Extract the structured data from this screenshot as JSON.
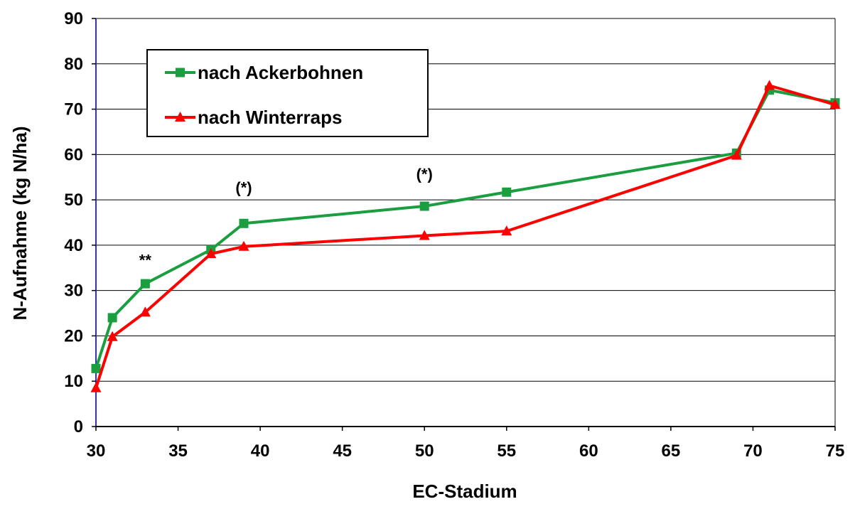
{
  "chart_data": {
    "type": "line",
    "xlabel": "EC-Stadium",
    "ylabel": "N-Aufnahme (kg N/ha)",
    "xlim": [
      30,
      75
    ],
    "ylim": [
      0,
      90
    ],
    "x_ticks": [
      "30",
      "35",
      "40",
      "45",
      "50",
      "55",
      "60",
      "65",
      "70",
      "75"
    ],
    "y_ticks": [
      "0",
      "10",
      "20",
      "30",
      "40",
      "50",
      "60",
      "70",
      "80",
      "90"
    ],
    "grid": "horizontal",
    "legend_position": "top-left",
    "series": [
      {
        "name": "nach Ackerbohnen",
        "color": "#1a9e3f",
        "marker": "square",
        "x": [
          30,
          31,
          33,
          37,
          39,
          50,
          55,
          69,
          71,
          75
        ],
        "y": [
          12.8,
          24,
          31.5,
          39,
          44.8,
          48.6,
          51.7,
          60.3,
          74.2,
          71.4
        ]
      },
      {
        "name": "nach Winterraps",
        "color": "#ff0000",
        "marker": "triangle",
        "x": [
          30,
          31,
          33,
          37,
          39,
          50,
          55,
          69,
          71,
          75
        ],
        "y": [
          8.5,
          19.8,
          25.2,
          38.1,
          39.7,
          42.1,
          43.1,
          59.8,
          75.2,
          71
        ]
      }
    ],
    "annotations": [
      {
        "text": "**",
        "x": 33,
        "y": 35.5
      },
      {
        "text": "(*)",
        "x": 39,
        "y": 51.5
      },
      {
        "text": "(*)",
        "x": 50,
        "y": 54.5
      }
    ]
  }
}
